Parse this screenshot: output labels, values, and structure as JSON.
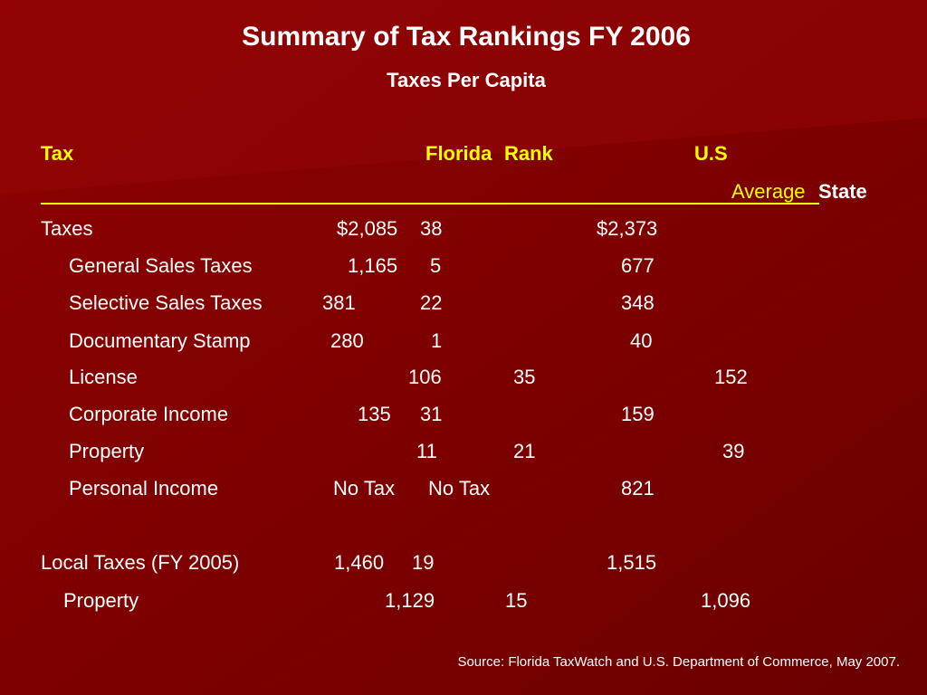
{
  "title": "Summary of Tax Rankings FY 2006",
  "subtitle": "Taxes Per Capita",
  "header": {
    "tax": "Tax",
    "florida": "Florida",
    "rank": "Rank",
    "us": "U.S",
    "average": "Average",
    "state": "State"
  },
  "rows": [
    {
      "label": "Taxes",
      "florida": "$2,085",
      "rank": "38",
      "us": "$2,373"
    },
    {
      "label": "General Sales Taxes",
      "florida": "1,165",
      "rank": "5",
      "us": "677"
    },
    {
      "label": "Selective Sales Taxes",
      "florida": "381",
      "rank": "22",
      "us": "348"
    },
    {
      "label": "Documentary Stamp",
      "florida": "280",
      "rank": "1",
      "us": "40"
    },
    {
      "label": "License",
      "florida": "106",
      "rank": "35",
      "us": "152"
    },
    {
      "label": "Corporate Income",
      "florida": "135",
      "rank": "31",
      "us": "159"
    },
    {
      "label": "Property",
      "florida": "11",
      "rank": "21",
      "us": "39"
    },
    {
      "label": "Personal Income",
      "florida": "No Tax",
      "rank": "No Tax",
      "us": "821"
    },
    {
      "label": "Local Taxes (FY 2005)",
      "florida": "1,460",
      "rank": "19",
      "us": "1,515"
    },
    {
      "label": "Property",
      "florida": "1,129",
      "rank": "15",
      "us": "1,096"
    }
  ],
  "source": "Source: Florida TaxWatch and U.S. Department of Commerce, May 2007.",
  "colors": {
    "background": "#7a0000",
    "accent": "#ffff00",
    "text": "#ffffff"
  }
}
